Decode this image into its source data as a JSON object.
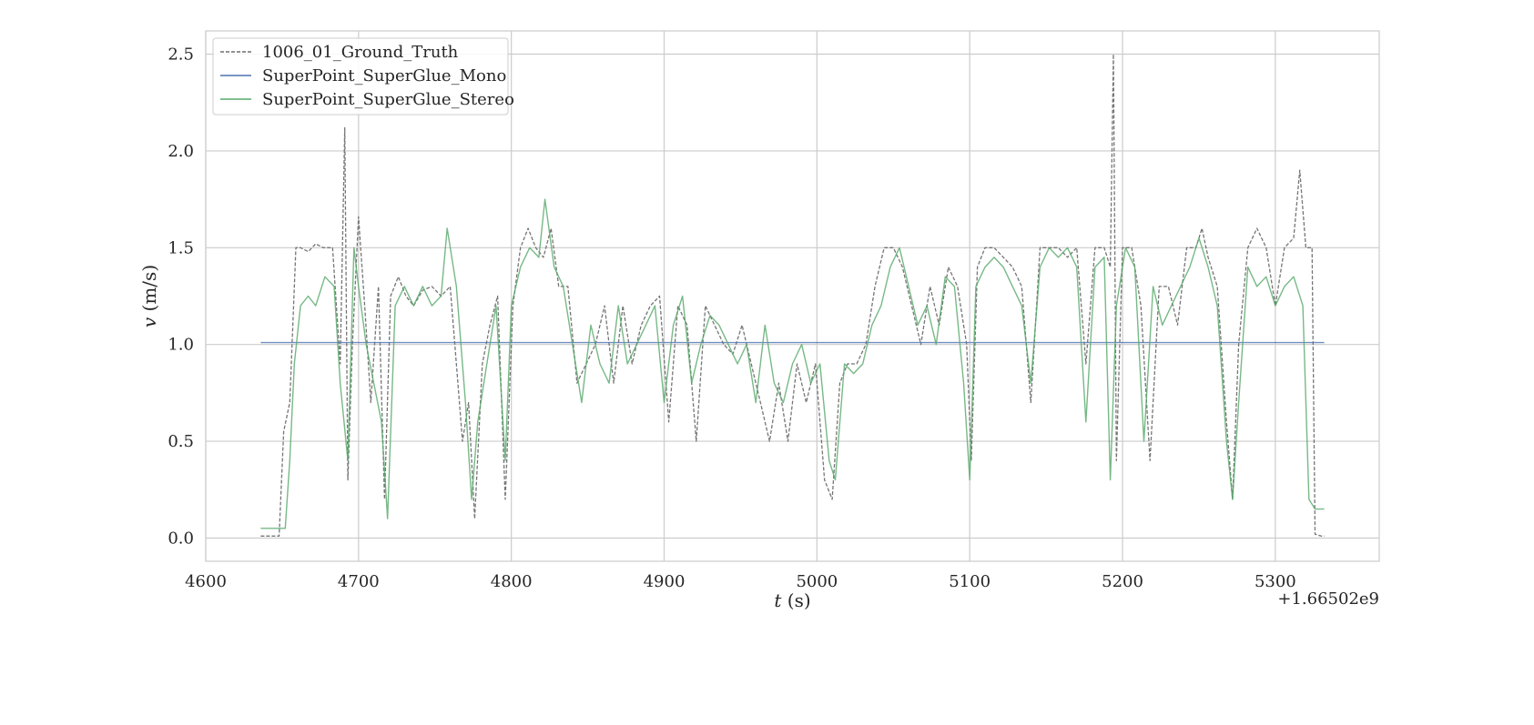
{
  "chart_data": {
    "type": "line",
    "xlabel_var": "t",
    "xlabel_unit": " (s)",
    "ylabel_var": "v",
    "ylabel_unit": " (m/s)",
    "x_offset_label": "+1.66502e9",
    "xlim": [
      4600,
      5368
    ],
    "ylim": [
      -0.12,
      2.62
    ],
    "x_ticks": [
      4600,
      4700,
      4800,
      4900,
      5000,
      5100,
      5200,
      5300
    ],
    "x_tick_labels": [
      "4600",
      "4700",
      "4800",
      "4900",
      "5000",
      "5100",
      "5200",
      "5300"
    ],
    "y_ticks": [
      0.0,
      0.5,
      1.0,
      1.5,
      2.0,
      2.5
    ],
    "y_tick_labels": [
      "0.0",
      "0.5",
      "1.0",
      "1.5",
      "2.0",
      "2.5"
    ],
    "grid": true,
    "legend_position": "top-left",
    "series": [
      {
        "name": "1006_01_Ground_Truth",
        "color": "#6e6e6e",
        "style": "dashed",
        "x": [
          4636,
          4648,
          4651,
          4655,
          4659,
          4662,
          4667,
          4672,
          4677,
          4683,
          4688,
          4691,
          4693,
          4696,
          4700,
          4704,
          4708,
          4713,
          4717,
          4721,
          4726,
          4731,
          4736,
          4742,
          4748,
          4754,
          4760,
          4764,
          4768,
          4772,
          4776,
          4781,
          4786,
          4791,
          4796,
          4801,
          4806,
          4811,
          4816,
          4821,
          4826,
          4831,
          4837,
          4843,
          4849,
          4855,
          4861,
          4867,
          4873,
          4879,
          4885,
          4891,
          4897,
          4903,
          4909,
          4915,
          4921,
          4927,
          4933,
          4939,
          4945,
          4951,
          4957,
          4963,
          4969,
          4975,
          4981,
          4987,
          4993,
          4999,
          5005,
          5010,
          5015,
          5020,
          5026,
          5032,
          5038,
          5044,
          5050,
          5056,
          5062,
          5068,
          5074,
          5080,
          5086,
          5092,
          5098,
          5101,
          5105,
          5110,
          5116,
          5122,
          5128,
          5134,
          5140,
          5146,
          5152,
          5158,
          5164,
          5170,
          5176,
          5182,
          5188,
          5192,
          5194,
          5196,
          5200,
          5206,
          5212,
          5218,
          5224,
          5230,
          5236,
          5242,
          5248,
          5252,
          5256,
          5262,
          5268,
          5272,
          5276,
          5282,
          5288,
          5294,
          5300,
          5306,
          5312,
          5316,
          5320,
          5324,
          5326,
          5330,
          5332
        ],
        "y": [
          0.01,
          0.01,
          0.55,
          0.7,
          1.5,
          1.5,
          1.48,
          1.52,
          1.5,
          1.5,
          0.9,
          2.12,
          0.3,
          1.0,
          1.66,
          1.2,
          0.7,
          1.3,
          0.2,
          1.25,
          1.35,
          1.25,
          1.2,
          1.28,
          1.3,
          1.25,
          1.3,
          0.9,
          0.5,
          0.7,
          0.1,
          0.9,
          1.1,
          1.25,
          0.2,
          1.2,
          1.5,
          1.6,
          1.5,
          1.45,
          1.6,
          1.3,
          1.3,
          0.8,
          0.9,
          1.0,
          1.2,
          0.8,
          1.2,
          0.9,
          1.1,
          1.2,
          1.25,
          0.6,
          1.2,
          1.1,
          0.5,
          1.2,
          1.1,
          1.0,
          0.95,
          1.1,
          0.9,
          0.7,
          0.5,
          0.8,
          0.5,
          0.9,
          0.7,
          0.9,
          0.3,
          0.2,
          0.8,
          0.9,
          0.9,
          1.0,
          1.3,
          1.5,
          1.5,
          1.4,
          1.2,
          1.0,
          1.3,
          1.1,
          1.4,
          1.3,
          1.0,
          0.4,
          1.4,
          1.5,
          1.5,
          1.45,
          1.4,
          1.3,
          0.7,
          1.5,
          1.5,
          1.5,
          1.45,
          1.5,
          0.9,
          1.5,
          1.5,
          1.4,
          2.5,
          0.4,
          1.5,
          1.5,
          1.2,
          0.4,
          1.3,
          1.3,
          1.1,
          1.5,
          1.5,
          1.6,
          1.45,
          1.3,
          0.6,
          0.2,
          1.0,
          1.5,
          1.6,
          1.5,
          1.2,
          1.5,
          1.55,
          1.9,
          1.5,
          1.5,
          0.02,
          0.01,
          0.01
        ]
      },
      {
        "name": "SuperPoint_SuperGlue_Mono",
        "color": "#4c72b0",
        "style": "solid",
        "x": [
          4636,
          5332
        ],
        "y": [
          1.01,
          1.01
        ]
      },
      {
        "name": "SuperPoint_SuperGlue_Stereo",
        "color": "#55a868",
        "style": "solid",
        "x": [
          4636,
          4652,
          4655,
          4658,
          4662,
          4667,
          4672,
          4678,
          4684,
          4688,
          4693,
          4697,
          4700,
          4705,
          4710,
          4715,
          4719,
          4724,
          4730,
          4736,
          4742,
          4748,
          4754,
          4758,
          4764,
          4770,
          4774,
          4778,
          4784,
          4790,
          4796,
          4800,
          4806,
          4812,
          4818,
          4822,
          4828,
          4834,
          4840,
          4846,
          4852,
          4858,
          4864,
          4870,
          4876,
          4882,
          4888,
          4894,
          4900,
          4906,
          4912,
          4918,
          4924,
          4930,
          4936,
          4942,
          4948,
          4954,
          4960,
          4966,
          4972,
          4978,
          4984,
          4990,
          4996,
          5002,
          5008,
          5012,
          5018,
          5024,
          5030,
          5036,
          5042,
          5048,
          5054,
          5060,
          5066,
          5072,
          5078,
          5084,
          5090,
          5096,
          5100,
          5104,
          5110,
          5116,
          5122,
          5128,
          5134,
          5140,
          5146,
          5152,
          5158,
          5164,
          5170,
          5176,
          5182,
          5188,
          5192,
          5196,
          5202,
          5208,
          5214,
          5220,
          5226,
          5232,
          5238,
          5244,
          5250,
          5256,
          5262,
          5268,
          5272,
          5276,
          5282,
          5288,
          5294,
          5300,
          5306,
          5312,
          5318,
          5322,
          5326,
          5332
        ],
        "y": [
          0.05,
          0.05,
          0.4,
          0.9,
          1.2,
          1.25,
          1.2,
          1.35,
          1.3,
          0.8,
          0.4,
          1.5,
          1.3,
          1.0,
          0.8,
          0.6,
          0.1,
          1.2,
          1.3,
          1.2,
          1.3,
          1.2,
          1.25,
          1.6,
          1.3,
          0.7,
          0.2,
          0.6,
          0.9,
          1.2,
          0.4,
          1.2,
          1.4,
          1.5,
          1.45,
          1.75,
          1.4,
          1.3,
          1.0,
          0.7,
          1.1,
          0.9,
          0.8,
          1.2,
          0.9,
          1.0,
          1.1,
          1.2,
          0.7,
          1.1,
          1.25,
          0.8,
          1.0,
          1.15,
          1.1,
          1.0,
          0.9,
          1.0,
          0.7,
          1.1,
          0.8,
          0.7,
          0.9,
          1.0,
          0.8,
          0.9,
          0.4,
          0.3,
          0.9,
          0.85,
          0.9,
          1.1,
          1.2,
          1.4,
          1.5,
          1.3,
          1.1,
          1.2,
          1.0,
          1.35,
          1.3,
          0.8,
          0.3,
          1.3,
          1.4,
          1.45,
          1.4,
          1.3,
          1.2,
          0.8,
          1.4,
          1.5,
          1.45,
          1.5,
          1.4,
          0.6,
          1.4,
          1.45,
          0.3,
          1.2,
          1.5,
          1.4,
          0.5,
          1.3,
          1.1,
          1.2,
          1.3,
          1.4,
          1.55,
          1.4,
          1.2,
          0.5,
          0.2,
          0.7,
          1.4,
          1.3,
          1.35,
          1.2,
          1.3,
          1.35,
          1.2,
          0.2,
          0.15,
          0.15
        ]
      }
    ]
  }
}
